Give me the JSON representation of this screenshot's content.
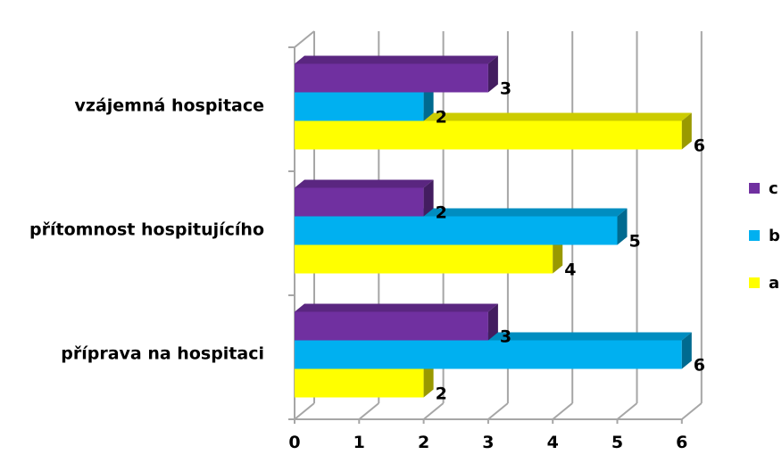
{
  "chart_data": {
    "type": "bar",
    "orientation": "horizontal",
    "three_d": true,
    "categories": [
      "příprava na hospitaci",
      "přítomnost hospitujícího",
      "vzájemná hospitace"
    ],
    "series": [
      {
        "name": "a",
        "color": "#FFFF00",
        "values": [
          2,
          4,
          6
        ]
      },
      {
        "name": "b",
        "color": "#00B0F0",
        "values": [
          6,
          5,
          2
        ]
      },
      {
        "name": "c",
        "color": "#7030A0",
        "values": [
          3,
          2,
          3
        ]
      }
    ],
    "xlim": [
      0,
      6
    ],
    "xticks": [
      "0",
      "1",
      "2",
      "3",
      "4",
      "5",
      "6"
    ],
    "grid": true,
    "legend": "right",
    "legend_order": [
      "c",
      "b",
      "a"
    ]
  }
}
